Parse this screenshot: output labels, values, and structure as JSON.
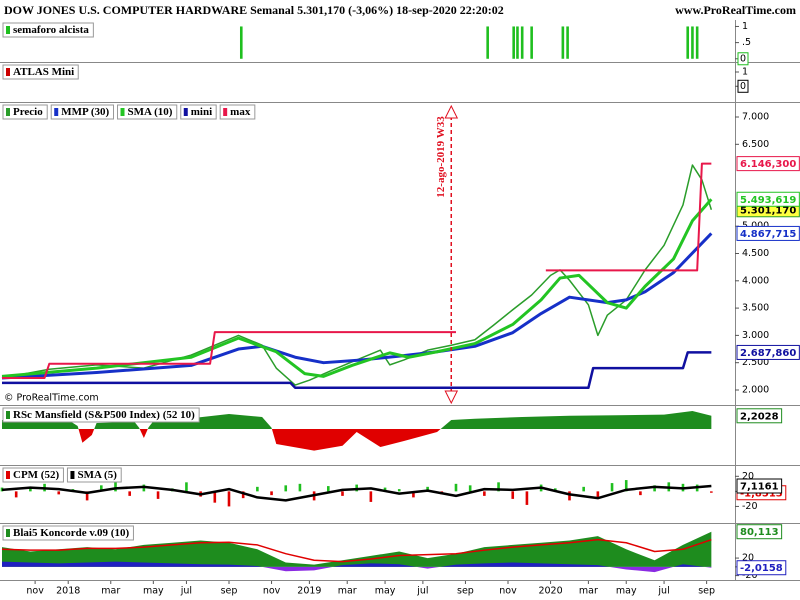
{
  "header": {
    "title": "DOW JONES U.S. COMPUTER HARDWARE Semanal 5.301,170 (-3,06%) 18-sep-2020 22:20:02",
    "site": "www.ProRealTime.com"
  },
  "chart_data": [
    {
      "type": "bar",
      "title": "semaforo alcista",
      "ylim": [
        -0.1,
        1.2
      ],
      "yticks": [
        0,
        {
          "value": 0.5,
          "label": ".5"
        },
        1
      ],
      "last_value": 0,
      "last_color": "#1fbf1f",
      "series": [
        {
          "type": "bar",
          "color": "#1fbf1f",
          "x": [
            50.6,
            102.7,
            108.2,
            109,
            110,
            112,
            118.6,
            119.6,
            145,
            146,
            147
          ],
          "values": [
            1,
            1,
            1,
            1,
            1,
            1,
            1,
            1,
            1,
            1,
            1
          ]
        }
      ]
    },
    {
      "type": "bar",
      "title": "ATLAS Mini",
      "ylim": [
        -1.1,
        1.7
      ],
      "yticks": [
        0,
        1
      ],
      "last_value": 0,
      "last_color": "#000000",
      "series": []
    },
    {
      "type": "line",
      "ylim": [
        1725,
        7275
      ],
      "xlim": [
        0,
        155
      ],
      "yticks": [
        {
          "value": 2000,
          "label": "2.000"
        },
        {
          "value": 2500,
          "label": "2.500"
        },
        {
          "value": 3000,
          "label": "3.000"
        },
        {
          "value": 3500,
          "label": "3.500"
        },
        {
          "value": 4000,
          "label": "4.000"
        },
        {
          "value": 4500,
          "label": "4.500"
        },
        {
          "value": 5000,
          "label": "5.000"
        },
        {
          "value": 6500,
          "label": "6.500"
        },
        {
          "value": 7000,
          "label": "7.000"
        }
      ],
      "xticks": [
        {
          "value": 7,
          "label": "nov"
        },
        {
          "value": 14,
          "label": "2018"
        },
        {
          "value": 23,
          "label": "mar"
        },
        {
          "value": 32,
          "label": "may"
        },
        {
          "value": 39,
          "label": "jul"
        },
        {
          "value": 48,
          "label": "sep"
        },
        {
          "value": 57,
          "label": "nov"
        },
        {
          "value": 65,
          "label": "2019"
        },
        {
          "value": 73,
          "label": "mar"
        },
        {
          "value": 81,
          "label": "may"
        },
        {
          "value": 89,
          "label": "jul"
        },
        {
          "value": 98,
          "label": "sep"
        },
        {
          "value": 107,
          "label": "nov"
        },
        {
          "value": 116,
          "label": "2020"
        },
        {
          "value": 124,
          "label": "mar"
        },
        {
          "value": 132,
          "label": "may"
        },
        {
          "value": 140,
          "label": "jul"
        },
        {
          "value": 149,
          "label": "sep"
        }
      ],
      "annotation": "12-ago-2019 W33",
      "annotation_x": 95,
      "annotation_color": "#e01020",
      "copyright": "© ProRealTime.com",
      "series": [
        {
          "name": "Precio",
          "type": "line",
          "color": "#2a9d2a",
          "width": 1.5,
          "last_label": "5.301,170",
          "label_fill": "#ffff40",
          "label_text": "#000000",
          "x": [
            0,
            10,
            20,
            30,
            40,
            45,
            50,
            55,
            58,
            62,
            65,
            70,
            75,
            80,
            82,
            85,
            90,
            95,
            100,
            104,
            108,
            112,
            116,
            118,
            120,
            124,
            126,
            128,
            132,
            136,
            140,
            144,
            146,
            148,
            150
          ],
          "values": [
            2220,
            2380,
            2460,
            2400,
            2640,
            2820,
            3000,
            2820,
            2400,
            2090,
            2180,
            2370,
            2550,
            2730,
            2460,
            2550,
            2730,
            2820,
            2920,
            3190,
            3470,
            3740,
            4100,
            4200,
            4010,
            3560,
            3000,
            3370,
            3650,
            4200,
            4650,
            5390,
            6120,
            5850,
            5301.17
          ]
        },
        {
          "name": "MMP (30)",
          "type": "line",
          "color": "#1630c8",
          "width": 3,
          "last_label": "4.867,715",
          "x": [
            0,
            20,
            40,
            50,
            55,
            62,
            68,
            76,
            84,
            92,
            100,
            108,
            114,
            120,
            128,
            132,
            136,
            142,
            150
          ],
          "values": [
            2220,
            2320,
            2450,
            2750,
            2800,
            2600,
            2500,
            2550,
            2620,
            2700,
            2800,
            3050,
            3400,
            3700,
            3600,
            3650,
            3800,
            4150,
            4867.715
          ]
        },
        {
          "name": "SMA (10)",
          "type": "line",
          "color": "#23c423",
          "width": 3,
          "last_label": "5.493,619",
          "x": [
            0,
            20,
            40,
            50,
            58,
            64,
            68,
            74,
            82,
            86,
            92,
            100,
            108,
            114,
            118,
            122,
            128,
            132,
            136,
            142,
            146,
            150
          ],
          "values": [
            2250,
            2400,
            2600,
            2950,
            2700,
            2300,
            2250,
            2450,
            2680,
            2600,
            2700,
            2850,
            3200,
            3650,
            4050,
            4100,
            3600,
            3500,
            3900,
            4400,
            5100,
            5493.619
          ]
        },
        {
          "name": "mini",
          "type": "line",
          "color": "#1010a0",
          "width": 2.5,
          "last_label": "2.687,860",
          "x": [
            0,
            61,
            62,
            124,
            125,
            144,
            145,
            150
          ],
          "values": [
            2130,
            2130,
            2040,
            2040,
            2400,
            2400,
            2687.86,
            2687.86
          ]
        },
        {
          "name": "max",
          "type": "line",
          "color": "#e8174a",
          "width": 2,
          "last_label": "6.146,300",
          "x": [
            0,
            9,
            10,
            44,
            45,
            96,
            97,
            115,
            147,
            148,
            150
          ],
          "values": [
            2220,
            2220,
            2480,
            2480,
            3060,
            3060,
            null,
            4190,
            4190,
            6146.3,
            6146.3
          ]
        }
      ]
    },
    {
      "type": "area",
      "title": "RSc Mansfield (S&P500 Index) (52 10)",
      "ylim": [
        -6,
        4
      ],
      "series": [
        {
          "type": "area",
          "color": "#1e8c1e",
          "down_color": "#e00000",
          "last_label": "2,2028",
          "label_text": "#000000",
          "x": [
            0,
            14,
            16,
            17,
            19,
            20,
            28,
            29,
            30,
            31,
            32,
            40,
            48,
            55,
            57,
            58,
            66,
            72,
            75,
            78,
            80,
            85,
            92,
            95,
            100,
            110,
            120,
            130,
            140,
            146,
            150
          ],
          "values": [
            1.5,
            1.5,
            0.5,
            -2.3,
            -1,
            1,
            1.2,
            0.2,
            -1.5,
            0.3,
            1.3,
            1.8,
            2.5,
            2,
            0.2,
            -2.5,
            -3.6,
            -2.8,
            -0.5,
            -2,
            -3,
            -2,
            -0.5,
            1.5,
            1.7,
            2,
            2.2,
            2.3,
            2.4,
            3,
            2.2028
          ]
        }
      ]
    },
    {
      "type": "bar",
      "ylim": [
        -42,
        35
      ],
      "yticks": [
        -20,
        0,
        20
      ],
      "series": [
        {
          "name": "CPM (52)",
          "type": "bar",
          "color": "#e00000",
          "up_color": "#1fbf1f",
          "last_label": "-1,8513",
          "x": [
            0,
            3,
            6,
            9,
            12,
            15,
            18,
            21,
            24,
            27,
            30,
            33,
            36,
            39,
            42,
            45,
            48,
            51,
            54,
            57,
            60,
            63,
            66,
            69,
            72,
            75,
            78,
            81,
            84,
            87,
            90,
            93,
            96,
            99,
            102,
            105,
            108,
            111,
            114,
            117,
            120,
            123,
            126,
            129,
            132,
            135,
            138,
            141,
            144,
            147,
            150
          ],
          "values": [
            5,
            -8,
            6,
            10,
            -4,
            3,
            -12,
            8,
            15,
            -6,
            9,
            -10,
            4,
            12,
            -7,
            -15,
            -20,
            -9,
            6,
            -5,
            8,
            10,
            -12,
            7,
            -6,
            9,
            -14,
            5,
            3,
            -8,
            6,
            -4,
            10,
            8,
            -6,
            12,
            -10,
            -18,
            9,
            4,
            -12,
            6,
            -8,
            11,
            15,
            -5,
            8,
            12,
            10,
            9,
            -1.8513
          ]
        },
        {
          "name": "SMA (5)",
          "type": "line",
          "color": "#000000",
          "width": 2.5,
          "last_label": "7,1161",
          "x": [
            0,
            6,
            12,
            18,
            24,
            30,
            36,
            42,
            48,
            54,
            60,
            66,
            72,
            78,
            84,
            90,
            96,
            102,
            108,
            114,
            120,
            126,
            132,
            138,
            144,
            150
          ],
          "values": [
            2,
            5,
            3,
            -2,
            4,
            6,
            2,
            -4,
            3,
            -8,
            -12,
            -5,
            2,
            4,
            -3,
            1,
            -6,
            3,
            2,
            5,
            -4,
            -9,
            2,
            6,
            4,
            7.1161
          ]
        }
      ]
    },
    {
      "type": "area",
      "title": "Blai5 Koncorde v.09 (10)",
      "ylim": [
        -30,
        100
      ],
      "yticks": [
        -20,
        0,
        20
      ],
      "series": [
        {
          "type": "area",
          "color": "#1e8c1e",
          "last_label": "80,113",
          "x": [
            0,
            6,
            12,
            18,
            24,
            30,
            36,
            42,
            48,
            54,
            60,
            66,
            72,
            78,
            84,
            90,
            96,
            102,
            108,
            114,
            120,
            126,
            132,
            138,
            144,
            150
          ],
          "values": [
            45,
            35,
            40,
            45,
            40,
            50,
            55,
            60,
            55,
            40,
            10,
            5,
            15,
            25,
            35,
            20,
            30,
            45,
            50,
            55,
            60,
            70,
            40,
            15,
            50,
            80.113
          ]
        },
        {
          "type": "area",
          "color": "#2020c0",
          "down_color": "#8a2be2",
          "last_label": "-2,0158",
          "x": [
            0,
            6,
            12,
            18,
            24,
            30,
            36,
            42,
            48,
            54,
            60,
            66,
            72,
            78,
            84,
            90,
            96,
            102,
            108,
            114,
            120,
            126,
            132,
            138,
            144,
            150
          ],
          "values": [
            12,
            10,
            8,
            10,
            12,
            10,
            8,
            6,
            5,
            2,
            -10,
            -8,
            4,
            8,
            6,
            -4,
            5,
            8,
            10,
            8,
            6,
            4,
            -6,
            -12,
            6,
            -2.0158
          ]
        },
        {
          "type": "line",
          "color": "#e00000",
          "width": 1.5,
          "x": [
            0,
            6,
            12,
            18,
            24,
            30,
            36,
            42,
            48,
            54,
            60,
            66,
            72,
            78,
            84,
            90,
            96,
            102,
            108,
            114,
            120,
            126,
            132,
            138,
            144,
            150
          ],
          "values": [
            40,
            38,
            38,
            42,
            42,
            45,
            50,
            55,
            56,
            50,
            30,
            15,
            12,
            18,
            26,
            28,
            30,
            38,
            45,
            50,
            55,
            62,
            55,
            35,
            40,
            62
          ]
        }
      ]
    }
  ]
}
